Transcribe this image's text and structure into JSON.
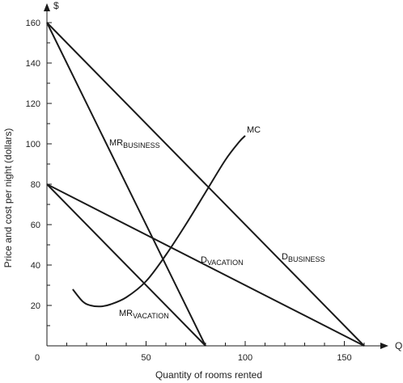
{
  "chart_data": {
    "type": "line",
    "xlabel": "Quantity of rooms rented",
    "ylabel": "Price and cost per night (dollars)",
    "x_axis_symbol": "Q",
    "y_axis_symbol": "$",
    "xlim": [
      0,
      165
    ],
    "ylim": [
      0,
      165
    ],
    "x_ticks": [
      0,
      50,
      100,
      150
    ],
    "x_tick_labels": [
      "0",
      "50",
      "100",
      "150"
    ],
    "y_ticks": [
      20,
      40,
      60,
      80,
      100,
      120,
      140,
      160
    ],
    "y_tick_labels": [
      "20",
      "40",
      "60",
      "80",
      "100",
      "120",
      "140",
      "160"
    ],
    "series": [
      {
        "label_main": "D",
        "label_sub": "BUSINESS",
        "x": [
          0,
          160
        ],
        "y": [
          160,
          0
        ]
      },
      {
        "label_main": "MR",
        "label_sub": "BUSINESS",
        "x": [
          0,
          80
        ],
        "y": [
          160,
          0
        ]
      },
      {
        "label_main": "D",
        "label_sub": "VACATION",
        "x": [
          0,
          160
        ],
        "y": [
          80,
          0
        ]
      },
      {
        "label_main": "MR",
        "label_sub": "VACATION",
        "x": [
          0,
          80
        ],
        "y": [
          80,
          0
        ]
      },
      {
        "label_main": "MC",
        "label_sub": "",
        "x": [
          13,
          18,
          22,
          27,
          32,
          40,
          50,
          60,
          70,
          80,
          90,
          97,
          100
        ],
        "y": [
          28,
          22,
          20,
          19.5,
          20.5,
          24,
          32,
          45,
          60,
          76,
          92,
          101,
          104
        ]
      }
    ]
  }
}
